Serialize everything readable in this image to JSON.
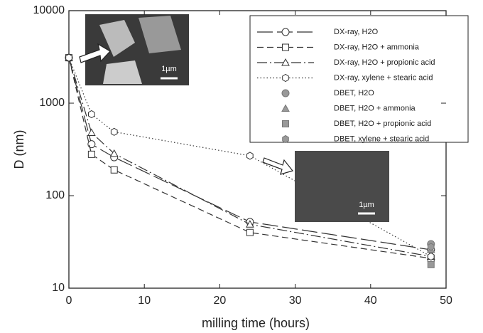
{
  "chart_data": {
    "type": "line",
    "x_label": "milling time (hours)",
    "y_label": "D (nm)",
    "xlim": [
      0,
      50
    ],
    "xticks": [
      0,
      10,
      20,
      30,
      40,
      50
    ],
    "ylim": [
      10,
      10000
    ],
    "yticks": [
      10,
      100,
      1000,
      10000
    ],
    "log_y": true,
    "series": [
      {
        "name": "DX-ray, H2O",
        "marker": "circle",
        "filled": false,
        "dash": "22,6",
        "color": "#333",
        "x": [
          0,
          3,
          6,
          24,
          48
        ],
        "values": [
          3100,
          360,
          260,
          52,
          26
        ]
      },
      {
        "name": "DX-ray, H2O + ammonia",
        "marker": "square",
        "filled": false,
        "dash": "9,5",
        "color": "#333",
        "x": [
          0,
          3,
          6,
          24,
          48
        ],
        "values": [
          3100,
          280,
          190,
          40,
          21
        ]
      },
      {
        "name": "DX-ray, H2O + propionic acid",
        "marker": "triangle",
        "filled": false,
        "dash": "14,4,2,4",
        "color": "#333",
        "x": [
          0,
          3,
          6,
          24,
          48
        ],
        "values": [
          3100,
          480,
          285,
          49,
          22
        ]
      },
      {
        "name": "DX-ray, xylene + stearic acid",
        "marker": "hexagon",
        "filled": false,
        "dash": "1.5,3",
        "color": "#333",
        "x": [
          0,
          3,
          6,
          24,
          48
        ],
        "values": [
          3100,
          760,
          490,
          270,
          22
        ]
      },
      {
        "name": "DBET, H2O",
        "marker": "circle",
        "filled": true,
        "color": "#999",
        "x": [
          48
        ],
        "values": [
          30
        ]
      },
      {
        "name": "DBET, H2O + ammonia",
        "marker": "triangle",
        "filled": true,
        "color": "#999",
        "x": [
          48
        ],
        "values": [
          26
        ]
      },
      {
        "name": "DBET, H2O + propionic acid",
        "marker": "square",
        "filled": true,
        "color": "#999",
        "x": [
          48
        ],
        "values": [
          18
        ]
      },
      {
        "name": "DBET, xylene + stearic acid",
        "marker": "hexagon",
        "filled": true,
        "color": "#999",
        "x": [
          48
        ],
        "values": [
          28
        ]
      }
    ],
    "insets": [
      {
        "scale_label": "1µm"
      },
      {
        "scale_label": "1µm"
      }
    ]
  }
}
